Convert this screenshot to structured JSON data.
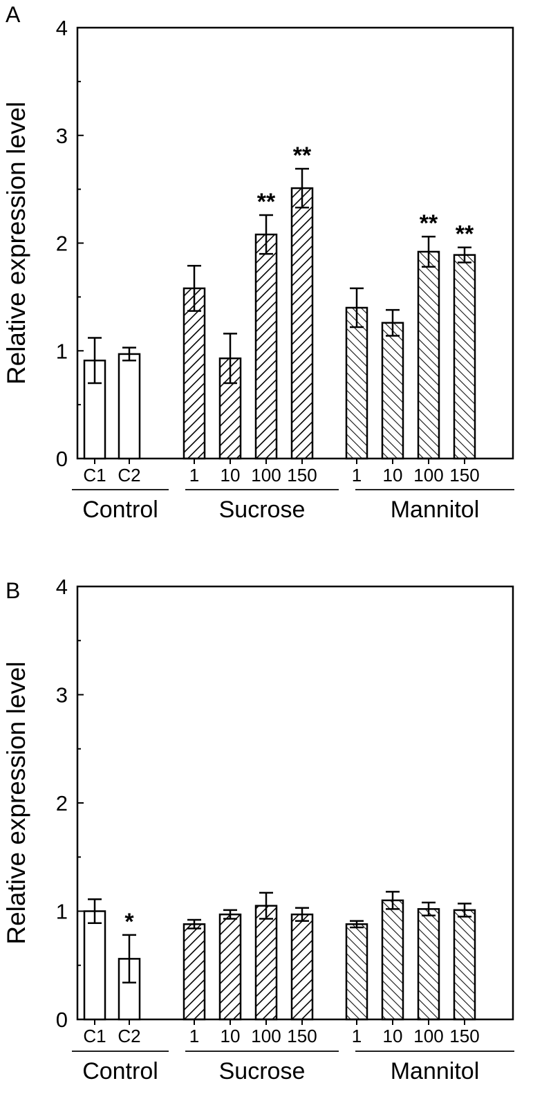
{
  "chart_data": [
    {
      "type": "bar",
      "panel_label": "A",
      "ylabel": "Relative expression level",
      "ylim": [
        0,
        4
      ],
      "yticks": [
        "0",
        "1",
        "2",
        "3",
        "4"
      ],
      "categories": [
        "C1",
        "C2",
        "1",
        "10",
        "100",
        "150",
        "1",
        "10",
        "100",
        "150"
      ],
      "groups": [
        {
          "name": "Control",
          "pattern": "open"
        },
        {
          "name": "Sucrose",
          "pattern": "hatch-right"
        },
        {
          "name": "Mannitol",
          "pattern": "hatch-left"
        }
      ],
      "values": [
        0.91,
        0.97,
        1.58,
        0.93,
        2.08,
        2.51,
        1.4,
        1.26,
        1.92,
        1.89
      ],
      "errors": [
        0.21,
        0.06,
        0.21,
        0.23,
        0.18,
        0.18,
        0.18,
        0.12,
        0.14,
        0.07
      ],
      "significance": [
        "",
        "",
        "",
        "",
        "**",
        "**",
        "",
        "",
        "**",
        "**"
      ]
    },
    {
      "type": "bar",
      "panel_label": "B",
      "ylabel": "Relative expression level",
      "ylim": [
        0,
        4
      ],
      "yticks": [
        "0",
        "1",
        "2",
        "3",
        "4"
      ],
      "categories": [
        "C1",
        "C2",
        "1",
        "10",
        "100",
        "150",
        "1",
        "10",
        "100",
        "150"
      ],
      "groups": [
        {
          "name": "Control",
          "pattern": "open"
        },
        {
          "name": "Sucrose",
          "pattern": "hatch-right"
        },
        {
          "name": "Mannitol",
          "pattern": "hatch-left"
        }
      ],
      "values": [
        1.0,
        0.56,
        0.88,
        0.97,
        1.05,
        0.97,
        0.88,
        1.1,
        1.02,
        1.01
      ],
      "errors": [
        0.11,
        0.22,
        0.04,
        0.04,
        0.12,
        0.06,
        0.03,
        0.08,
        0.06,
        0.06
      ],
      "significance": [
        "",
        "*",
        "",
        "",
        "",
        "",
        "",
        "",
        "",
        ""
      ]
    }
  ]
}
